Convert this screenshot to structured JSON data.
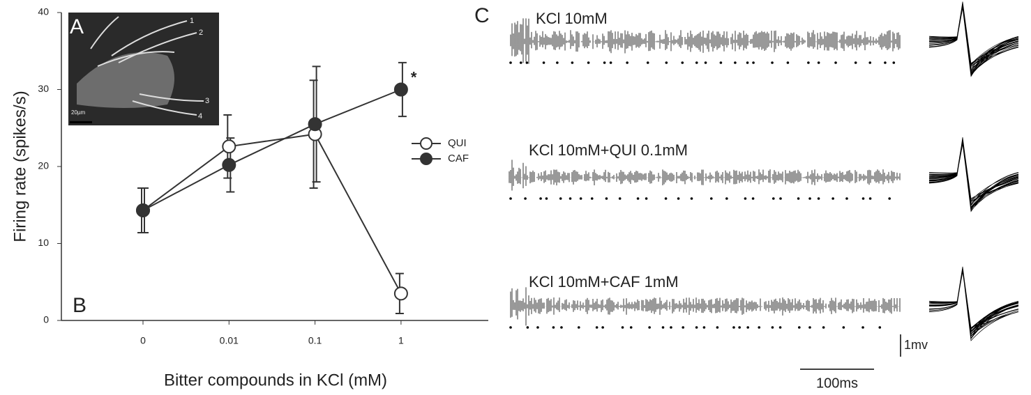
{
  "chart_data": {
    "type": "line",
    "y_label": "Firing rate (spikes/s)",
    "x_label": "Bitter compounds in KCl (mM)",
    "categories": [
      "0",
      "0.01",
      "0.1",
      "1"
    ],
    "series": [
      {
        "name": "QUI",
        "color": "#ffffff",
        "values": [
          14.3,
          22.6,
          24.2,
          3.5
        ],
        "errors": [
          2.9,
          4.1,
          7.0,
          2.6
        ]
      },
      {
        "name": "CAF",
        "color": "#333333",
        "values": [
          14.3,
          20.2,
          25.5,
          30.0
        ],
        "errors": [
          2.9,
          3.5,
          7.5,
          3.5
        ]
      }
    ],
    "annotation": "*",
    "ylim": [
      0,
      40
    ],
    "yticks": [
      0,
      10,
      20,
      30,
      40
    ],
    "legend": "right"
  },
  "panel_labels": [
    "A",
    "B",
    "C"
  ],
  "inset": {
    "hair_labels": [
      "1",
      "2",
      "3",
      "4"
    ],
    "scale": "20µm"
  },
  "traces": [
    "KCl 10mM",
    "KCl 10mM+QUI 0.1mM",
    "KCl 10mM+CAF 1mM"
  ],
  "scale_bars": {
    "voltage": "1mv",
    "time": "100ms"
  }
}
